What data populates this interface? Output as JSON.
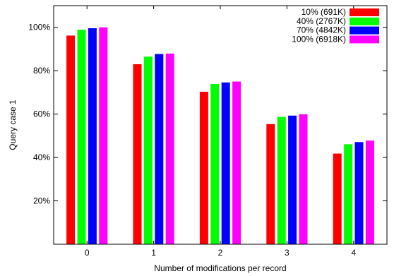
{
  "chart_data": {
    "type": "bar",
    "categories": [
      "0",
      "1",
      "2",
      "3",
      "4"
    ],
    "xlabel": "Number of modifications per record",
    "ylabel": "Query case 1",
    "ylim": [
      0,
      110
    ],
    "y_ticks": [
      {
        "value": 20,
        "label": "20%"
      },
      {
        "value": 40,
        "label": "40%"
      },
      {
        "value": 60,
        "label": "60%"
      },
      {
        "value": 80,
        "label": "80%"
      },
      {
        "value": 100,
        "label": "100%"
      }
    ],
    "legend_position": "top-right",
    "grid": false,
    "series": [
      {
        "name": "10% (691K)",
        "color": "#ff0000",
        "values": [
          96.2,
          83.0,
          70.3,
          55.4,
          41.8
        ]
      },
      {
        "name": "40% (2767K)",
        "color": "#00ff00",
        "values": [
          98.9,
          86.5,
          73.9,
          58.7,
          46.1
        ]
      },
      {
        "name": "70% (4842K)",
        "color": "#0000ff",
        "values": [
          99.6,
          87.7,
          74.6,
          59.3,
          47.1
        ]
      },
      {
        "name": "100% (6918K)",
        "color": "#ff00ff",
        "values": [
          100.0,
          87.9,
          75.0,
          59.9,
          47.8
        ]
      }
    ]
  }
}
